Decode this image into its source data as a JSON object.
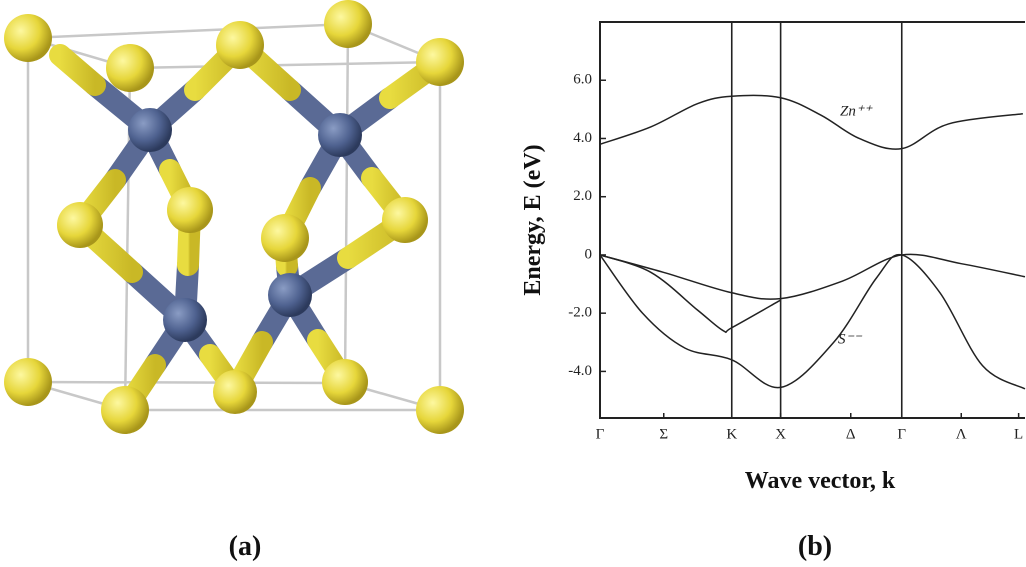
{
  "panels": {
    "a": {
      "label": "(a)"
    },
    "b": {
      "label": "(b)"
    }
  },
  "chart_data": {
    "type": "line",
    "ylabel": "Energy, E (eV)",
    "xlabel": "Wave vector, k",
    "annotations": [
      "Zn⁺⁺",
      "S⁻⁻"
    ],
    "xlim": [
      0,
      10
    ],
    "ylim": [
      -5.6,
      8
    ],
    "xticks": [
      {
        "value": 0,
        "label": "Γ"
      },
      {
        "value": 1.5,
        "label": "Σ"
      },
      {
        "value": 3.1,
        "label": "K"
      },
      {
        "value": 4.25,
        "label": "X"
      },
      {
        "value": 5.9,
        "label": "Δ"
      },
      {
        "value": 7.1,
        "label": "Γ"
      },
      {
        "value": 8.5,
        "label": "Λ"
      },
      {
        "value": 9.85,
        "label": "L"
      }
    ],
    "yticks": [
      {
        "value": 6,
        "label": "6.0"
      },
      {
        "value": 4,
        "label": "4.0"
      },
      {
        "value": 2,
        "label": "2.0"
      },
      0,
      {
        "value": -2,
        "label": "-2.0"
      },
      {
        "value": -4,
        "label": "-4.0"
      }
    ],
    "vlines": [
      3.1,
      4.25,
      7.1
    ],
    "color": "#222222",
    "series": [
      {
        "x": [
          0,
          1.2,
          2.3,
          3.1,
          4.25,
          5.2,
          6.1,
          7.1,
          8.2,
          9.95
        ],
        "values": [
          3.8,
          4.4,
          5.2,
          5.45,
          5.4,
          4.8,
          4.0,
          3.65,
          4.5,
          4.85
        ]
      },
      {
        "x": [
          0,
          1.5,
          3.1,
          4.25,
          5.7,
          7.1,
          8.5,
          10
        ],
        "values": [
          0,
          -0.6,
          -1.3,
          -1.5,
          -0.9,
          0,
          -0.3,
          -0.75
        ]
      },
      {
        "x": [
          0,
          1.2,
          2.3,
          2.9,
          3.1,
          4.25
        ],
        "values": [
          0,
          -0.6,
          -1.9,
          -2.6,
          -2.5,
          -1.55
        ]
      },
      {
        "x": [
          0,
          1,
          2,
          3.1,
          4.25,
          5.5,
          6.5,
          7.1,
          8,
          9,
          10
        ],
        "values": [
          0,
          -2.0,
          -3.2,
          -3.6,
          -4.55,
          -3.0,
          -0.8,
          0,
          -1.3,
          -3.8,
          -4.6
        ]
      }
    ]
  }
}
